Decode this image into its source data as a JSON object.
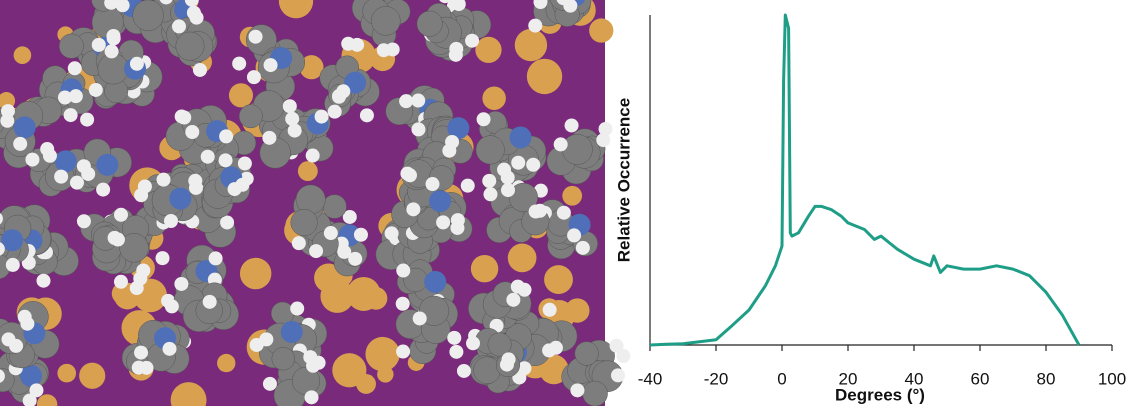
{
  "chart_data": {
    "type": "line",
    "x_label": "Degrees (°)",
    "y_label": "Relative Occurrence",
    "xlim": [
      -40,
      100
    ],
    "xticks": [
      -40,
      -20,
      0,
      20,
      40,
      60,
      80,
      100
    ],
    "ylim": [
      0,
      5
    ],
    "series": [
      {
        "color": "#1f9e87",
        "x": [
          -40,
          -35,
          -30,
          -25,
          -20,
          -15,
          -10,
          -5,
          -2,
          0,
          0.5,
          1,
          2,
          2.5,
          3,
          5,
          8,
          10,
          12,
          15,
          18,
          20,
          25,
          28,
          30,
          35,
          40,
          45,
          46,
          48,
          50,
          55,
          60,
          65,
          70,
          75,
          80,
          85,
          90
        ],
        "values": [
          0,
          0.01,
          0.02,
          0.05,
          0.08,
          0.3,
          0.53,
          0.9,
          1.2,
          1.5,
          4.0,
          5.0,
          4.8,
          1.7,
          1.65,
          1.7,
          1.95,
          2.1,
          2.1,
          2.05,
          1.95,
          1.85,
          1.75,
          1.6,
          1.65,
          1.45,
          1.3,
          1.2,
          1.35,
          1.1,
          1.2,
          1.15,
          1.15,
          1.2,
          1.15,
          1.05,
          0.8,
          0.45,
          0
        ]
      }
    ]
  }
}
